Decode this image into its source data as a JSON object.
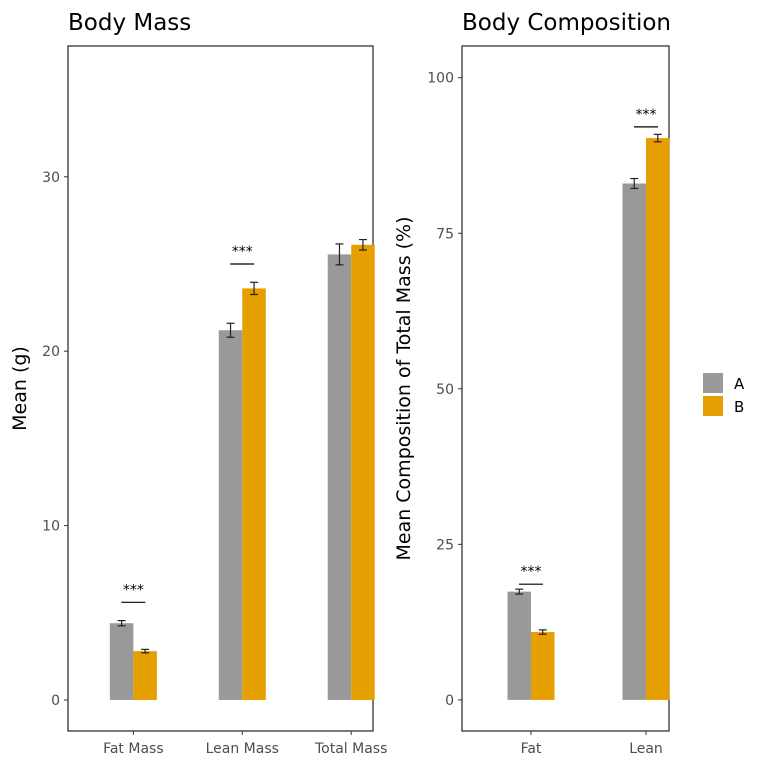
{
  "chart_data": [
    {
      "type": "bar",
      "title": "Body Mass",
      "xlabel": "",
      "ylabel": "Mean (g)",
      "categories": [
        "Fat Mass",
        "Lean Mass",
        "Total Mass"
      ],
      "yticks": [
        0,
        10,
        20,
        30
      ],
      "ylim": [
        -1.78,
        37.5
      ],
      "series": [
        {
          "name": "A",
          "values": [
            4.4,
            21.2,
            25.55
          ],
          "errors": [
            0.15,
            0.4,
            0.6
          ]
        },
        {
          "name": "B",
          "values": [
            2.8,
            23.6,
            26.1
          ],
          "errors": [
            0.1,
            0.35,
            0.3
          ]
        }
      ],
      "annotations": [
        {
          "category": "Fat Mass",
          "label": "***",
          "y": 5.6
        },
        {
          "category": "Lean Mass",
          "label": "***",
          "y": 25.0
        }
      ],
      "grid": false
    },
    {
      "type": "bar",
      "title": "Body Composition",
      "xlabel": "",
      "ylabel": "Mean Composition of Total Mass (%)",
      "categories": [
        "Fat",
        "Lean"
      ],
      "yticks": [
        0,
        25,
        50,
        75,
        100
      ],
      "ylim": [
        -5.0,
        105.1
      ],
      "series": [
        {
          "name": "A",
          "values": [
            17.4,
            83.0
          ],
          "errors": [
            0.4,
            0.8
          ]
        },
        {
          "name": "B",
          "values": [
            10.9,
            90.3
          ],
          "errors": [
            0.35,
            0.6
          ]
        }
      ],
      "annotations": [
        {
          "category": "Fat",
          "label": "***",
          "y": 18.6
        },
        {
          "category": "Lean",
          "label": "***",
          "y": 92.1
        }
      ],
      "grid": false
    }
  ],
  "legend": {
    "placement": "right",
    "items": [
      {
        "label": "A",
        "color": "#999999"
      },
      {
        "label": "B",
        "color": "#E69F00"
      }
    ]
  }
}
